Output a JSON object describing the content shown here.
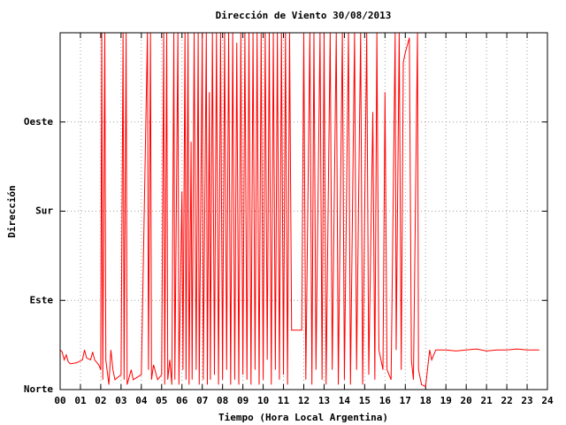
{
  "chart_data": {
    "type": "line",
    "title": "Dirección de Viento 30/08/2013",
    "xlabel": "Tiempo (Hora Local Argentina)",
    "ylabel": "Dirección",
    "xlim": [
      0,
      24
    ],
    "ylim": [
      0,
      360
    ],
    "xticks": [
      {
        "value": 0,
        "label": "00"
      },
      {
        "value": 1,
        "label": "01"
      },
      {
        "value": 2,
        "label": "02"
      },
      {
        "value": 3,
        "label": "03"
      },
      {
        "value": 4,
        "label": "04"
      },
      {
        "value": 5,
        "label": "05"
      },
      {
        "value": 6,
        "label": "06"
      },
      {
        "value": 7,
        "label": "07"
      },
      {
        "value": 8,
        "label": "08"
      },
      {
        "value": 9,
        "label": "09"
      },
      10,
      11,
      12,
      13,
      14,
      15,
      16,
      17,
      18,
      19,
      20,
      21,
      22,
      23,
      24
    ],
    "yticks": [
      {
        "value": 0,
        "label": "Norte"
      },
      {
        "value": 90,
        "label": "Este"
      },
      {
        "value": 180,
        "label": "Sur"
      },
      {
        "value": 270,
        "label": "Oeste"
      }
    ],
    "grid": true,
    "series": [
      {
        "color": "#ff0000",
        "x": [
          0.0,
          0.1,
          0.2,
          0.3,
          0.4,
          0.5,
          0.8,
          1.1,
          1.2,
          1.3,
          1.5,
          1.6,
          1.7,
          1.9,
          2.0,
          2.05,
          2.1,
          2.2,
          2.25,
          2.4,
          2.5,
          2.6,
          2.7,
          3.0,
          3.1,
          3.15,
          3.25,
          3.3,
          3.5,
          3.6,
          4.0,
          4.3,
          4.35,
          4.45,
          4.5,
          4.6,
          4.8,
          5.0,
          5.1,
          5.15,
          5.25,
          5.3,
          5.4,
          5.5,
          5.6,
          5.65,
          5.8,
          5.85,
          6.0,
          6.05,
          6.15,
          6.2,
          6.3,
          6.35,
          6.45,
          6.5,
          6.6,
          6.7,
          6.8,
          6.85,
          7.0,
          7.05,
          7.2,
          7.25,
          7.35,
          7.4,
          7.5,
          7.6,
          7.7,
          7.8,
          7.9,
          8.0,
          8.1,
          8.2,
          8.3,
          8.4,
          8.5,
          8.6,
          8.7,
          8.8,
          8.9,
          9.0,
          9.1,
          9.2,
          9.3,
          9.4,
          9.5,
          9.6,
          9.7,
          9.8,
          9.9,
          10.0,
          10.1,
          10.2,
          10.3,
          10.4,
          10.5,
          10.6,
          10.7,
          10.8,
          10.9,
          11.0,
          11.1,
          11.2,
          11.3,
          11.4,
          11.9,
          12.0,
          12.1,
          12.3,
          12.4,
          12.5,
          12.6,
          12.8,
          12.9,
          13.0,
          13.1,
          13.3,
          13.4,
          13.6,
          13.7,
          13.9,
          14.0,
          14.2,
          14.3,
          14.5,
          14.6,
          14.8,
          14.9,
          15.1,
          15.2,
          15.4,
          15.5,
          15.6,
          15.7,
          15.9,
          16.0,
          16.1,
          16.3,
          16.5,
          16.55,
          16.7,
          16.8,
          16.9,
          17.0,
          17.2,
          17.3,
          17.4,
          17.6,
          17.65,
          17.8,
          18.0,
          18.2,
          18.3,
          18.4,
          18.5,
          19.0,
          19.5,
          20.0,
          20.5,
          21.0,
          21.5,
          22.0,
          22.5,
          23.0,
          23.6
        ],
        "values": [
          40,
          38,
          30,
          35,
          28,
          26,
          27,
          30,
          40,
          32,
          30,
          38,
          30,
          25,
          20,
          360,
          10,
          360,
          30,
          5,
          40,
          20,
          10,
          15,
          360,
          10,
          360,
          5,
          20,
          10,
          15,
          360,
          20,
          360,
          10,
          25,
          10,
          15,
          360,
          5,
          360,
          10,
          30,
          5,
          360,
          10,
          360,
          5,
          200,
          20,
          360,
          10,
          360,
          5,
          250,
          10,
          360,
          20,
          360,
          5,
          360,
          10,
          360,
          5,
          300,
          10,
          360,
          15,
          360,
          5,
          360,
          10,
          360,
          20,
          360,
          5,
          360,
          10,
          350,
          5,
          360,
          15,
          360,
          10,
          360,
          5,
          360,
          20,
          360,
          5,
          360,
          10,
          360,
          30,
          360,
          5,
          360,
          20,
          360,
          10,
          360,
          15,
          360,
          5,
          360,
          60,
          60,
          360,
          10,
          360,
          5,
          360,
          20,
          360,
          10,
          360,
          5,
          360,
          20,
          360,
          5,
          360,
          10,
          360,
          5,
          360,
          20,
          360,
          5,
          360,
          15,
          280,
          10,
          360,
          40,
          20,
          300,
          20,
          10,
          360,
          40,
          360,
          20,
          330,
          340,
          355,
          30,
          10,
          360,
          20,
          5,
          3,
          40,
          30,
          35,
          40,
          40,
          39,
          40,
          41,
          39,
          40,
          40,
          41,
          40,
          40
        ]
      }
    ]
  }
}
